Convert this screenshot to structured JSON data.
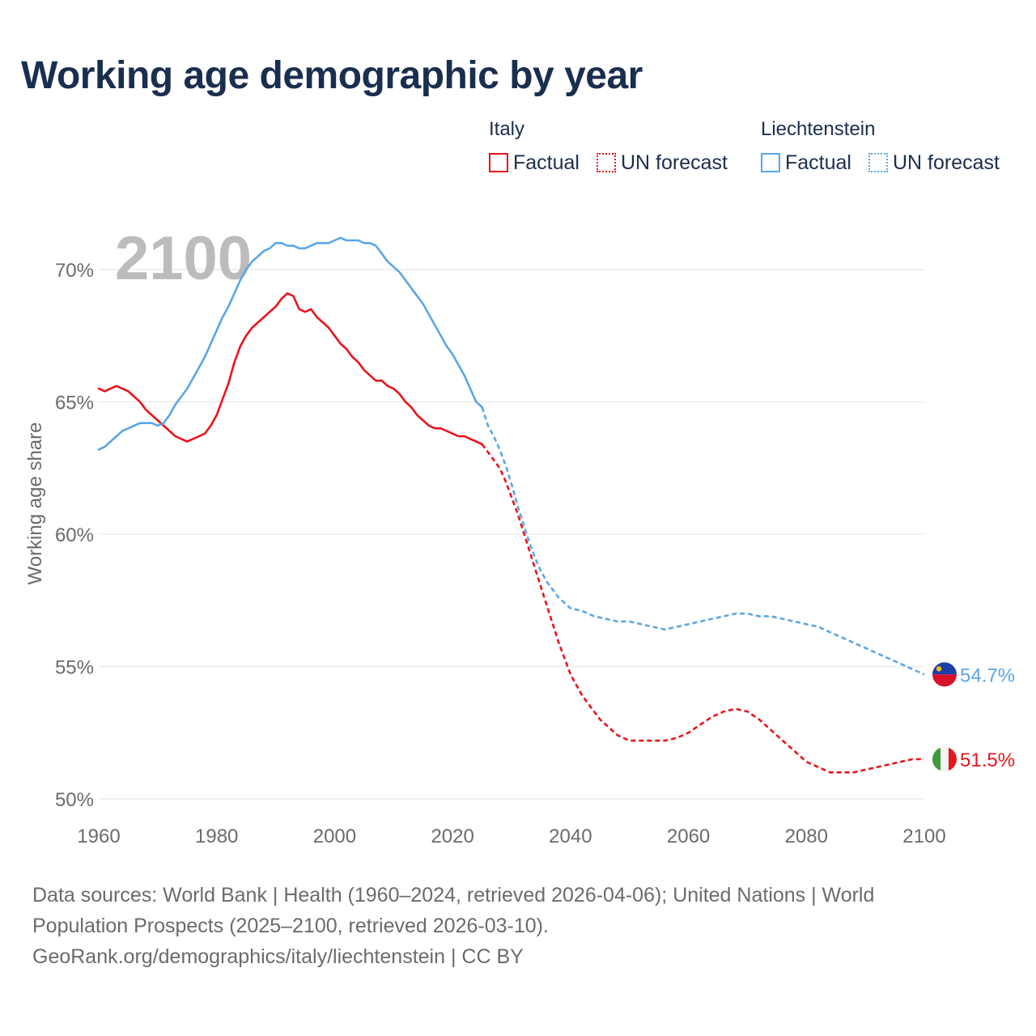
{
  "title": "Working age demographic by year",
  "legend": {
    "italy": {
      "name": "Italy",
      "factual": "Factual",
      "forecast": "UN forecast"
    },
    "liechtenstein": {
      "name": "Liechtenstein",
      "factual": "Factual",
      "forecast": "UN forecast"
    }
  },
  "colors": {
    "italy": "#e8141c",
    "liechtenstein": "#5aa6e6",
    "title": "#1a2e4f",
    "year_watermark": "#bcbcbc"
  },
  "footer": {
    "line1": "Data sources: World Bank | Health (1960–2024, retrieved 2026-04-06); United Nations | World",
    "line2": "Population Prospects (2025–2100, retrieved 2026-03-10).",
    "line3": "GeoRank.org/demographics/italy/liechtenstein | CC BY"
  },
  "chart_data": {
    "type": "line",
    "title": "Working age demographic by year",
    "ylabel": "Working age share",
    "xlabel": "",
    "year_label": "2100",
    "xlim": [
      1960,
      2100
    ],
    "ylim": [
      50,
      72
    ],
    "x_ticks": [
      "1960",
      "1980",
      "2000",
      "2020",
      "2040",
      "2060",
      "2080",
      "2100"
    ],
    "y_ticks": [
      {
        "value": 50,
        "label": "50%"
      },
      {
        "value": 55,
        "label": "55%"
      },
      {
        "value": 60,
        "label": "60%"
      },
      {
        "value": 65,
        "label": "65%"
      },
      {
        "value": 70,
        "label": "70%"
      }
    ],
    "series": [
      {
        "name": "Italy",
        "color": "#e8141c",
        "end_label": "51.5%",
        "factual": [
          [
            1960,
            65.5
          ],
          [
            1961,
            65.4
          ],
          [
            1962,
            65.5
          ],
          [
            1963,
            65.6
          ],
          [
            1964,
            65.5
          ],
          [
            1965,
            65.4
          ],
          [
            1966,
            65.2
          ],
          [
            1967,
            65.0
          ],
          [
            1968,
            64.7
          ],
          [
            1969,
            64.5
          ],
          [
            1970,
            64.3
          ],
          [
            1971,
            64.1
          ],
          [
            1972,
            63.9
          ],
          [
            1973,
            63.7
          ],
          [
            1974,
            63.6
          ],
          [
            1975,
            63.5
          ],
          [
            1976,
            63.6
          ],
          [
            1977,
            63.7
          ],
          [
            1978,
            63.8
          ],
          [
            1979,
            64.1
          ],
          [
            1980,
            64.5
          ],
          [
            1981,
            65.1
          ],
          [
            1982,
            65.7
          ],
          [
            1983,
            66.5
          ],
          [
            1984,
            67.1
          ],
          [
            1985,
            67.5
          ],
          [
            1986,
            67.8
          ],
          [
            1987,
            68.0
          ],
          [
            1988,
            68.2
          ],
          [
            1989,
            68.4
          ],
          [
            1990,
            68.6
          ],
          [
            1991,
            68.9
          ],
          [
            1992,
            69.1
          ],
          [
            1993,
            69.0
          ],
          [
            1994,
            68.5
          ],
          [
            1995,
            68.4
          ],
          [
            1996,
            68.5
          ],
          [
            1997,
            68.2
          ],
          [
            1998,
            68.0
          ],
          [
            1999,
            67.8
          ],
          [
            2000,
            67.5
          ],
          [
            2001,
            67.2
          ],
          [
            2002,
            67.0
          ],
          [
            2003,
            66.7
          ],
          [
            2004,
            66.5
          ],
          [
            2005,
            66.2
          ],
          [
            2006,
            66.0
          ],
          [
            2007,
            65.8
          ],
          [
            2008,
            65.8
          ],
          [
            2009,
            65.6
          ],
          [
            2010,
            65.5
          ],
          [
            2011,
            65.3
          ],
          [
            2012,
            65.0
          ],
          [
            2013,
            64.8
          ],
          [
            2014,
            64.5
          ],
          [
            2015,
            64.3
          ],
          [
            2016,
            64.1
          ],
          [
            2017,
            64.0
          ],
          [
            2018,
            64.0
          ],
          [
            2019,
            63.9
          ],
          [
            2020,
            63.8
          ],
          [
            2021,
            63.7
          ],
          [
            2022,
            63.7
          ],
          [
            2023,
            63.6
          ],
          [
            2024,
            63.5
          ],
          [
            2025,
            63.4
          ]
        ],
        "forecast": [
          [
            2025,
            63.4
          ],
          [
            2026,
            63.1
          ],
          [
            2027,
            62.8
          ],
          [
            2028,
            62.5
          ],
          [
            2029,
            62.0
          ],
          [
            2030,
            61.4
          ],
          [
            2031,
            60.8
          ],
          [
            2032,
            60.1
          ],
          [
            2033,
            59.4
          ],
          [
            2034,
            58.7
          ],
          [
            2035,
            58.0
          ],
          [
            2036,
            57.3
          ],
          [
            2037,
            56.6
          ],
          [
            2038,
            55.9
          ],
          [
            2039,
            55.3
          ],
          [
            2040,
            54.7
          ],
          [
            2041,
            54.3
          ],
          [
            2042,
            53.9
          ],
          [
            2043,
            53.6
          ],
          [
            2044,
            53.3
          ],
          [
            2045,
            53.0
          ],
          [
            2046,
            52.8
          ],
          [
            2047,
            52.6
          ],
          [
            2048,
            52.4
          ],
          [
            2049,
            52.3
          ],
          [
            2050,
            52.2
          ],
          [
            2052,
            52.2
          ],
          [
            2054,
            52.2
          ],
          [
            2056,
            52.2
          ],
          [
            2058,
            52.3
          ],
          [
            2060,
            52.5
          ],
          [
            2062,
            52.8
          ],
          [
            2064,
            53.1
          ],
          [
            2066,
            53.3
          ],
          [
            2068,
            53.4
          ],
          [
            2070,
            53.3
          ],
          [
            2072,
            53.0
          ],
          [
            2074,
            52.6
          ],
          [
            2076,
            52.2
          ],
          [
            2078,
            51.8
          ],
          [
            2080,
            51.4
          ],
          [
            2082,
            51.2
          ],
          [
            2084,
            51.0
          ],
          [
            2086,
            51.0
          ],
          [
            2088,
            51.0
          ],
          [
            2090,
            51.1
          ],
          [
            2092,
            51.2
          ],
          [
            2094,
            51.3
          ],
          [
            2096,
            51.4
          ],
          [
            2098,
            51.5
          ],
          [
            2100,
            51.5
          ]
        ]
      },
      {
        "name": "Liechtenstein",
        "color": "#5aa6e6",
        "end_label": "54.7%",
        "factual": [
          [
            1960,
            63.2
          ],
          [
            1961,
            63.3
          ],
          [
            1962,
            63.5
          ],
          [
            1963,
            63.7
          ],
          [
            1964,
            63.9
          ],
          [
            1965,
            64.0
          ],
          [
            1966,
            64.1
          ],
          [
            1967,
            64.2
          ],
          [
            1968,
            64.2
          ],
          [
            1969,
            64.2
          ],
          [
            1970,
            64.1
          ],
          [
            1971,
            64.2
          ],
          [
            1972,
            64.5
          ],
          [
            1973,
            64.9
          ],
          [
            1974,
            65.2
          ],
          [
            1975,
            65.5
          ],
          [
            1976,
            65.9
          ],
          [
            1977,
            66.3
          ],
          [
            1978,
            66.7
          ],
          [
            1979,
            67.2
          ],
          [
            1980,
            67.7
          ],
          [
            1981,
            68.2
          ],
          [
            1982,
            68.6
          ],
          [
            1983,
            69.1
          ],
          [
            1984,
            69.6
          ],
          [
            1985,
            70.0
          ],
          [
            1986,
            70.3
          ],
          [
            1987,
            70.5
          ],
          [
            1988,
            70.7
          ],
          [
            1989,
            70.8
          ],
          [
            1990,
            71.0
          ],
          [
            1991,
            71.0
          ],
          [
            1992,
            70.9
          ],
          [
            1993,
            70.9
          ],
          [
            1994,
            70.8
          ],
          [
            1995,
            70.8
          ],
          [
            1996,
            70.9
          ],
          [
            1997,
            71.0
          ],
          [
            1998,
            71.0
          ],
          [
            1999,
            71.0
          ],
          [
            2000,
            71.1
          ],
          [
            2001,
            71.2
          ],
          [
            2002,
            71.1
          ],
          [
            2003,
            71.1
          ],
          [
            2004,
            71.1
          ],
          [
            2005,
            71.0
          ],
          [
            2006,
            71.0
          ],
          [
            2007,
            70.9
          ],
          [
            2008,
            70.6
          ],
          [
            2009,
            70.3
          ],
          [
            2010,
            70.1
          ],
          [
            2011,
            69.9
          ],
          [
            2012,
            69.6
          ],
          [
            2013,
            69.3
          ],
          [
            2014,
            69.0
          ],
          [
            2015,
            68.7
          ],
          [
            2016,
            68.3
          ],
          [
            2017,
            67.9
          ],
          [
            2018,
            67.5
          ],
          [
            2019,
            67.1
          ],
          [
            2020,
            66.8
          ],
          [
            2021,
            66.4
          ],
          [
            2022,
            66.0
          ],
          [
            2023,
            65.5
          ],
          [
            2024,
            65.0
          ],
          [
            2025,
            64.8
          ]
        ],
        "forecast": [
          [
            2025,
            64.8
          ],
          [
            2026,
            64.1
          ],
          [
            2027,
            63.7
          ],
          [
            2028,
            63.2
          ],
          [
            2029,
            62.6
          ],
          [
            2030,
            61.9
          ],
          [
            2031,
            61.1
          ],
          [
            2032,
            60.4
          ],
          [
            2033,
            59.7
          ],
          [
            2034,
            59.1
          ],
          [
            2035,
            58.6
          ],
          [
            2036,
            58.2
          ],
          [
            2037,
            57.9
          ],
          [
            2038,
            57.6
          ],
          [
            2039,
            57.4
          ],
          [
            2040,
            57.2
          ],
          [
            2042,
            57.1
          ],
          [
            2044,
            56.9
          ],
          [
            2046,
            56.8
          ],
          [
            2048,
            56.7
          ],
          [
            2050,
            56.7
          ],
          [
            2052,
            56.6
          ],
          [
            2054,
            56.5
          ],
          [
            2056,
            56.4
          ],
          [
            2058,
            56.5
          ],
          [
            2060,
            56.6
          ],
          [
            2062,
            56.7
          ],
          [
            2064,
            56.8
          ],
          [
            2066,
            56.9
          ],
          [
            2068,
            57.0
          ],
          [
            2070,
            57.0
          ],
          [
            2072,
            56.9
          ],
          [
            2074,
            56.9
          ],
          [
            2076,
            56.8
          ],
          [
            2078,
            56.7
          ],
          [
            2080,
            56.6
          ],
          [
            2082,
            56.5
          ],
          [
            2084,
            56.3
          ],
          [
            2086,
            56.1
          ],
          [
            2088,
            55.9
          ],
          [
            2090,
            55.7
          ],
          [
            2092,
            55.5
          ],
          [
            2094,
            55.3
          ],
          [
            2096,
            55.1
          ],
          [
            2098,
            54.9
          ],
          [
            2100,
            54.7
          ]
        ]
      }
    ]
  }
}
